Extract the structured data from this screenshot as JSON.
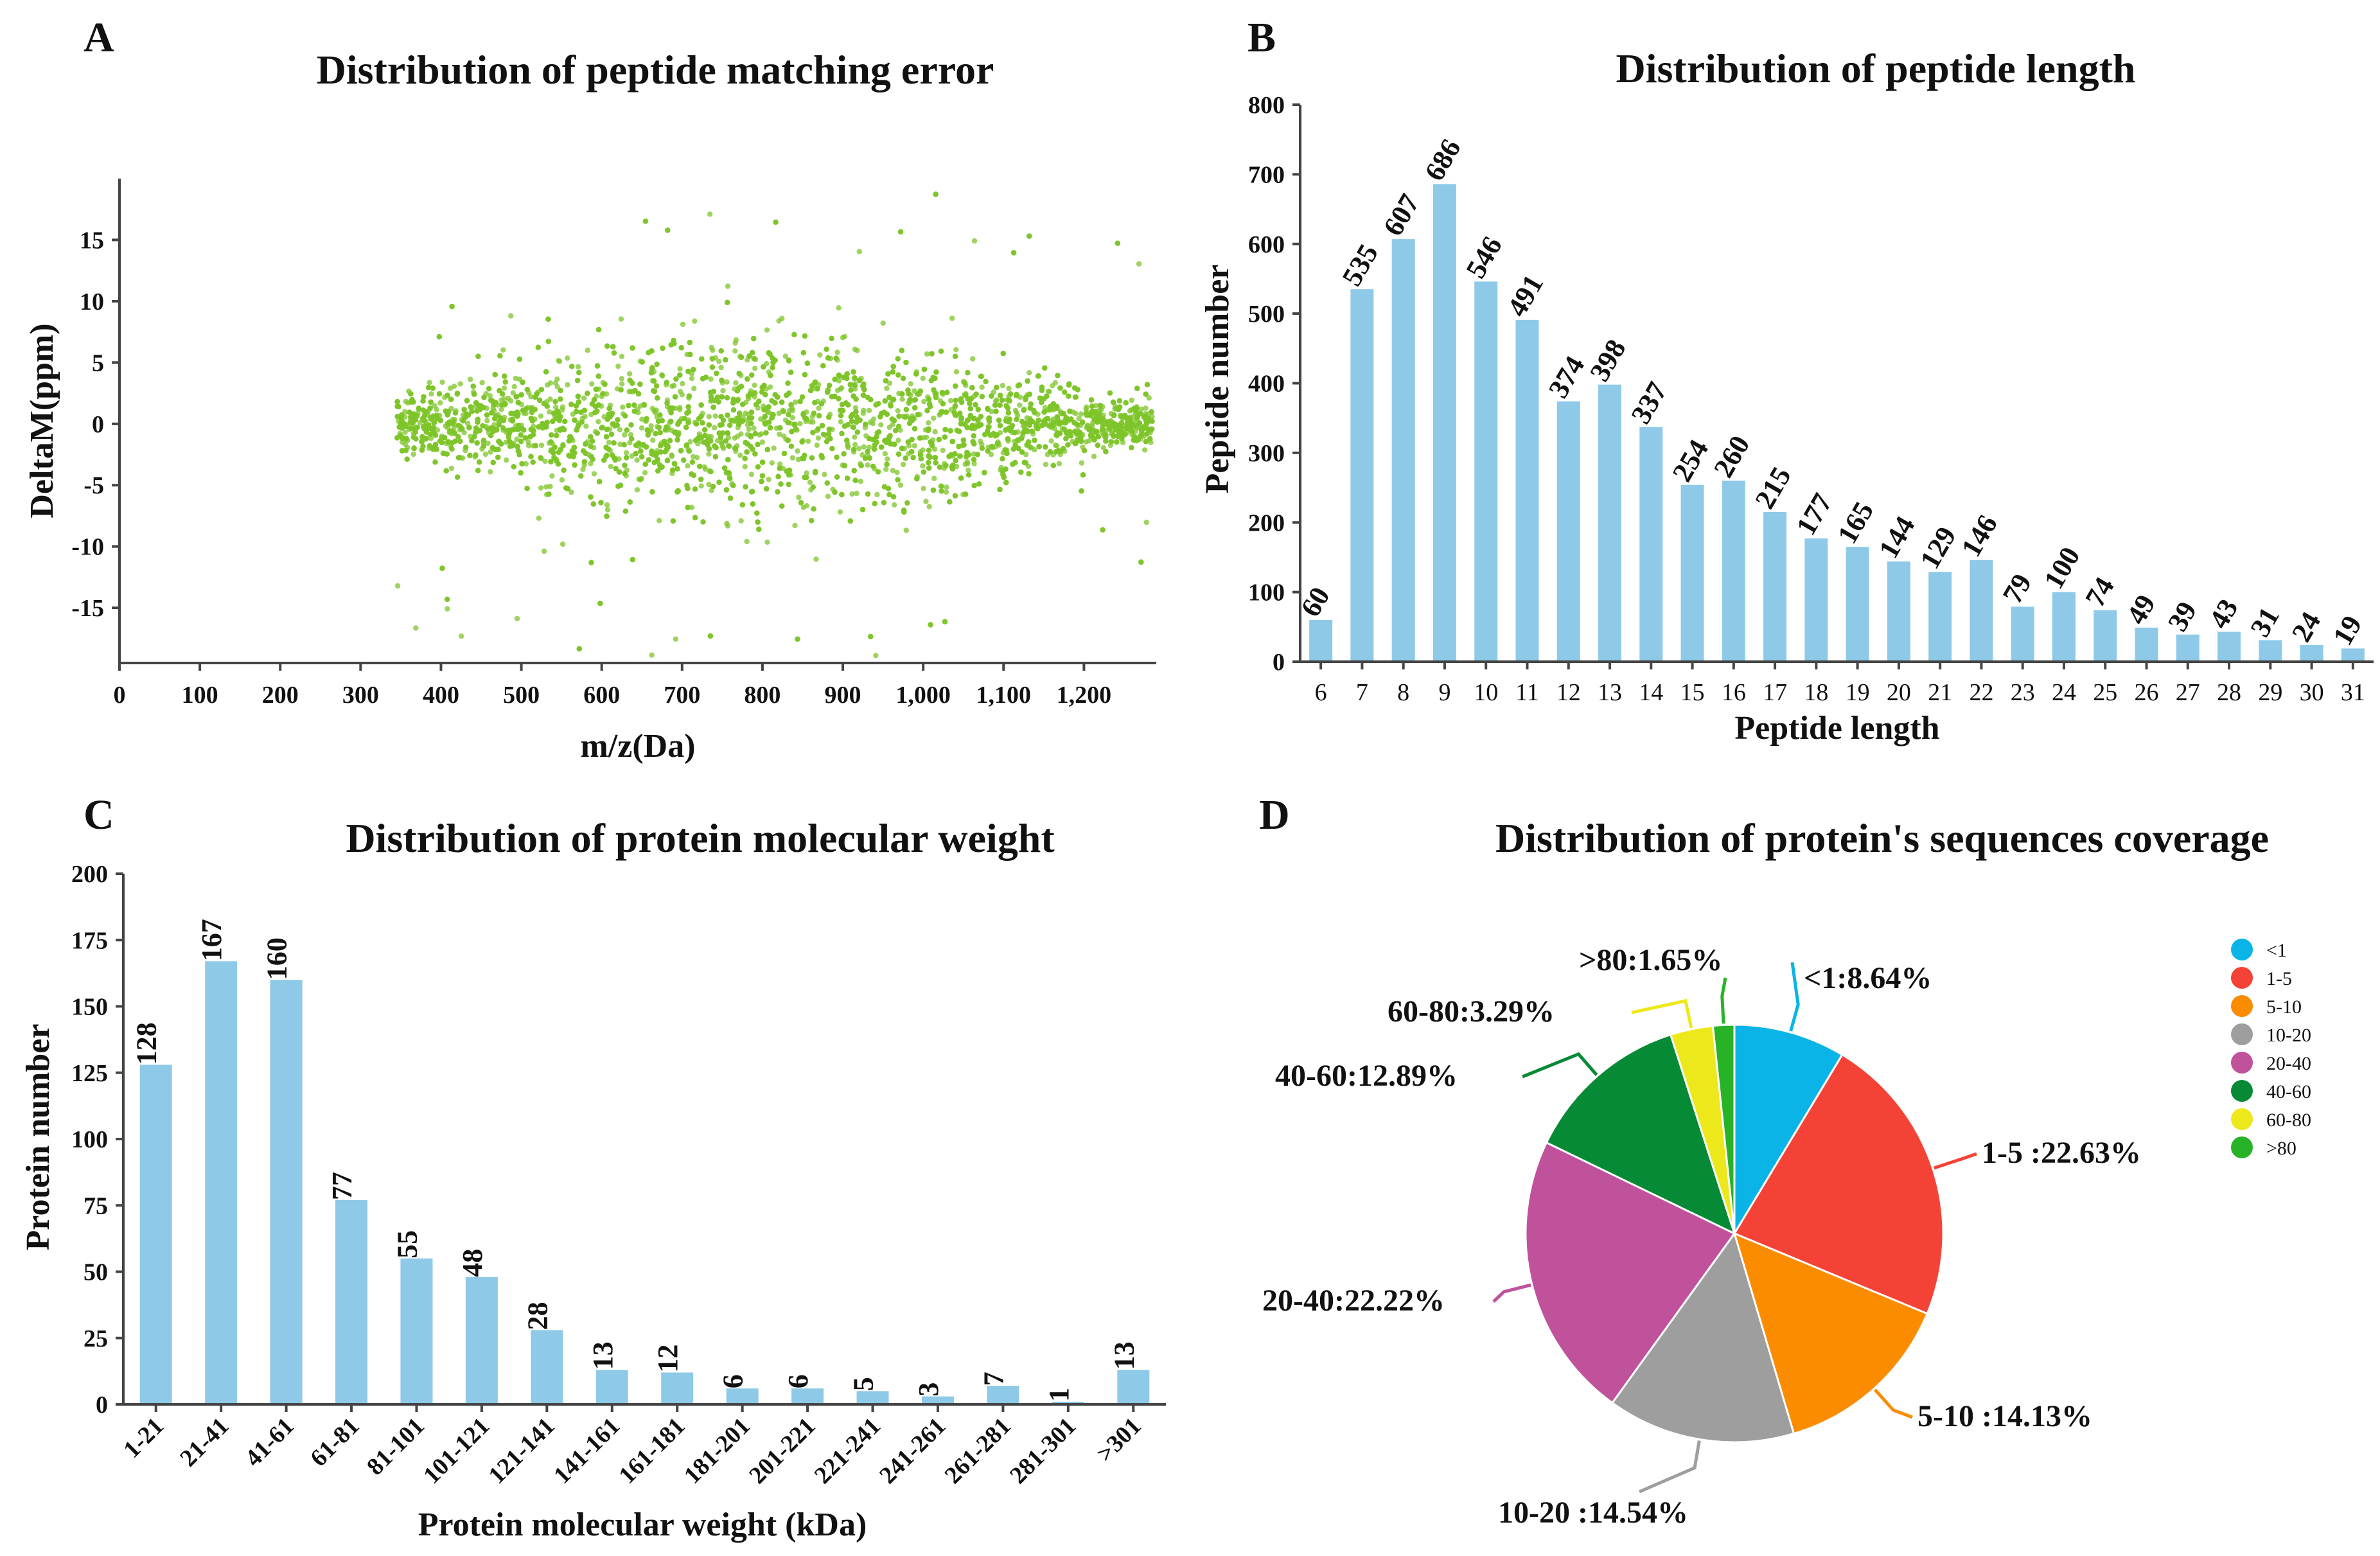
{
  "chart_data": [
    {
      "panel": "A",
      "type": "scatter",
      "title": "Distribution of peptide matching error",
      "xlabel": "m/z(Da)",
      "ylabel": "DeltaM(ppm)",
      "xlim": [
        0,
        1290
      ],
      "ylim": [
        -19.5,
        20
      ],
      "xticks": [
        0,
        100,
        200,
        300,
        400,
        500,
        600,
        700,
        800,
        900,
        1000,
        1100,
        1200
      ],
      "xtick_labels": [
        "0",
        "100",
        "200",
        "300",
        "400",
        "500",
        "600",
        "700",
        "800",
        "900",
        "1,000",
        "1,100",
        "1,200"
      ],
      "yticks": [
        -15,
        -10,
        -5,
        0,
        5,
        10,
        15
      ],
      "ytick_labels": [
        "-15",
        "-10",
        "-5",
        "0",
        "5",
        "10",
        "15"
      ],
      "point_color": "#7dc42a",
      "x_range_of_points": [
        345,
        1285
      ],
      "center_ppm": 0
    },
    {
      "panel": "B",
      "type": "bar",
      "title": "Distribution of peptide length",
      "xlabel": "Peptide length",
      "ylabel": "Peptide number",
      "ylim": [
        0,
        800
      ],
      "yticks": [
        0,
        100,
        200,
        300,
        400,
        500,
        600,
        700,
        800
      ],
      "categories": [
        "6",
        "7",
        "8",
        "9",
        "10",
        "11",
        "12",
        "13",
        "14",
        "15",
        "16",
        "17",
        "18",
        "19",
        "20",
        "21",
        "22",
        "23",
        "24",
        "25",
        "26",
        "27",
        "28",
        "29",
        "30",
        "31"
      ],
      "values": [
        60,
        535,
        607,
        686,
        546,
        491,
        374,
        398,
        337,
        254,
        260,
        215,
        177,
        165,
        144,
        129,
        146,
        79,
        100,
        74,
        49,
        39,
        43,
        31,
        24,
        19
      ],
      "bar_color": "#8ecae8"
    },
    {
      "panel": "C",
      "type": "bar",
      "title": "Distribution of protein molecular weight",
      "xlabel": "Protein molecular weight (kDa)",
      "ylabel": "Protein number",
      "ylim": [
        0,
        200
      ],
      "yticks": [
        0,
        25,
        50,
        75,
        100,
        125,
        150,
        175,
        200
      ],
      "categories": [
        "1-21",
        "21-41",
        "41-61",
        "61-81",
        "81-101",
        "101-121",
        "121-141",
        "141-161",
        "161-181",
        "181-201",
        "201-221",
        "221-241",
        "241-261",
        "261-281",
        "281-301",
        ">301"
      ],
      "values": [
        128,
        167,
        160,
        77,
        55,
        48,
        28,
        13,
        12,
        6,
        6,
        5,
        3,
        7,
        1,
        13
      ],
      "bar_color": "#8ecae8"
    },
    {
      "panel": "D",
      "type": "pie",
      "title": "Distribution of protein's sequences coverage",
      "slices": [
        {
          "name": "<1",
          "value": 8.64,
          "label": "<1:8.64%",
          "color": "#0ab4e6"
        },
        {
          "name": "1-5",
          "value": 22.63,
          "label": "1-5 :22.63%",
          "color": "#f44336"
        },
        {
          "name": "5-10",
          "value": 14.13,
          "label": "5-10 :14.13%",
          "color": "#fb8c00"
        },
        {
          "name": "10-20",
          "value": 14.54,
          "label": "10-20 :14.54%",
          "color": "#9e9e9e"
        },
        {
          "name": "20-40",
          "value": 22.22,
          "label": "20-40:22.22%",
          "color": "#c0529c"
        },
        {
          "name": "40-60",
          "value": 12.89,
          "label": "40-60:12.89%",
          "color": "#078a36"
        },
        {
          "name": "60-80",
          "value": 3.29,
          "label": "60-80:3.29%",
          "color": "#ece81c"
        },
        {
          "name": ">80",
          "value": 1.65,
          "label": ">80:1.65%",
          "color": "#28b228"
        }
      ],
      "legend": [
        "<1",
        "1-5",
        "5-10",
        "10-20",
        "20-40",
        "40-60",
        "60-80",
        ">80"
      ],
      "legend_placement": "right"
    }
  ]
}
